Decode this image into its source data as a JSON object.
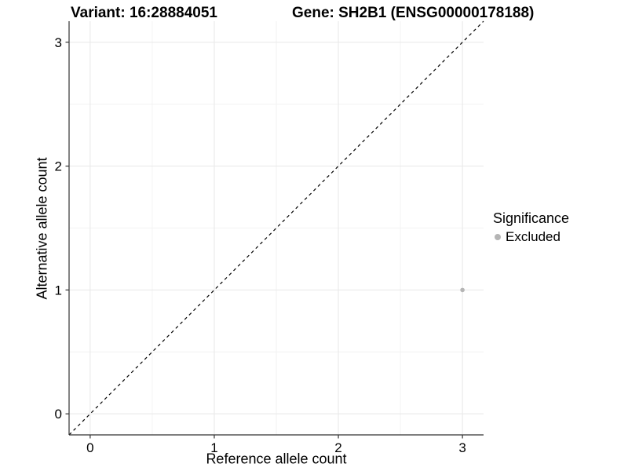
{
  "header": {
    "variant_title": "Variant: 16:28884051",
    "gene_title": "Gene: SH2B1 (ENSG00000178188)"
  },
  "chart_data": {
    "type": "scatter",
    "title_left": "Variant: 16:28884051",
    "title_right": "Gene: SH2B1 (ENSG00000178188)",
    "xlabel": "Reference allele count",
    "ylabel": "Alternative allele count",
    "xlim": [
      -0.17,
      3.17
    ],
    "ylim": [
      -0.17,
      3.17
    ],
    "x_ticks": [
      0,
      1,
      2,
      3
    ],
    "y_ticks": [
      0,
      1,
      2,
      3
    ],
    "minor_gridlines": [
      0.5,
      1.5,
      2.5
    ],
    "grid": "major and minor light-gray gridlines on white panel",
    "series": [
      {
        "name": "Excluded",
        "color": "#b5b5b5",
        "points": [
          {
            "x": 3,
            "y": 1
          }
        ]
      }
    ],
    "reference_line": {
      "type": "identity y=x",
      "style": "dashed",
      "color": "#000000",
      "from": [
        -0.17,
        -0.17
      ],
      "to": [
        3.17,
        3.17
      ]
    },
    "legend": {
      "title": "Significance",
      "position": "right",
      "entries": [
        "Excluded"
      ]
    }
  },
  "colors": {
    "background": "#ffffff",
    "point_excluded": "#b5b5b5",
    "grid_major": "#e8e8e8",
    "grid_minor": "#f2f2f2",
    "axis_line": "#333333",
    "tick_mark": "#333333",
    "text": "#000000"
  }
}
